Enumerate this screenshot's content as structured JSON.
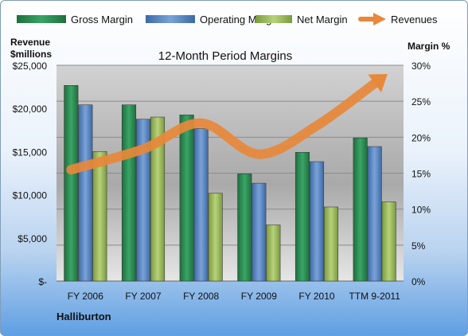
{
  "chart_data": {
    "type": "bar",
    "title": "12-Month Period Margins",
    "company": "Halliburton",
    "left_axis_label_line1": "Revenue",
    "left_axis_label_line2": "$millions",
    "right_axis_label": "Margin %",
    "categories": [
      "FY 2006",
      "FY 2007",
      "FY 2008",
      "FY 2009",
      "FY 2010",
      "TTM 9-2011"
    ],
    "series": [
      {
        "name": "Gross Margin",
        "axis": "right",
        "values": [
          27.2,
          24.5,
          23.1,
          14.9,
          17.9,
          19.9
        ],
        "color": "#2e8b57"
      },
      {
        "name": "Operating Margin",
        "axis": "right",
        "values": [
          24.5,
          22.5,
          21.2,
          13.6,
          16.6,
          18.7
        ],
        "color": "#4f81bd"
      },
      {
        "name": "Net Margin",
        "axis": "right",
        "values": [
          18.0,
          22.8,
          12.2,
          7.8,
          10.3,
          11.0
        ],
        "color": "#9bbb59"
      },
      {
        "name": "Revenues",
        "axis": "left",
        "type": "arrow",
        "values": [
          12900,
          15300,
          18300,
          14700,
          18000,
          22900
        ],
        "color": "#e8883a"
      }
    ],
    "left_ticks": [
      "$-",
      "$5,000",
      "$10,000",
      "$15,000",
      "$20,000",
      "$25,000"
    ],
    "right_ticks": [
      "0%",
      "5%",
      "10%",
      "15%",
      "20%",
      "25%",
      "30%"
    ],
    "ylim_left": [
      0,
      25000
    ],
    "ylim_right": [
      0,
      30
    ],
    "legend_position": "top",
    "grid": true
  }
}
